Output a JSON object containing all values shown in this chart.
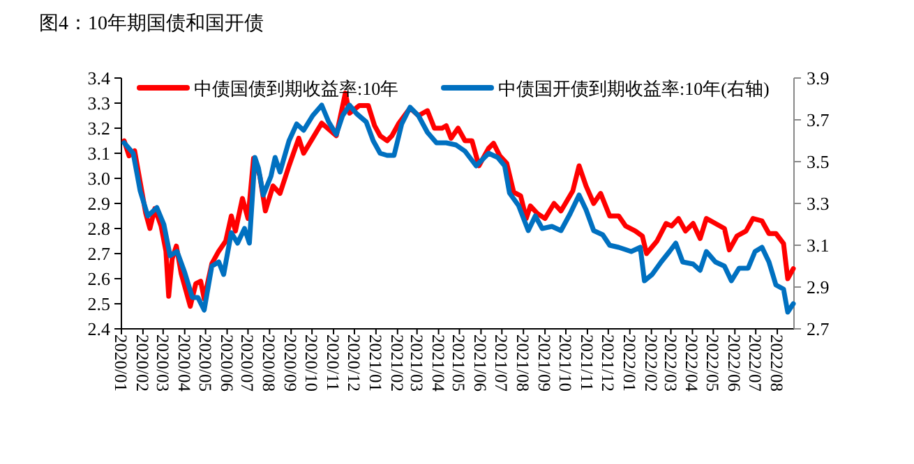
{
  "chart_data": {
    "type": "line",
    "title": "图4：10年期国债和国开债",
    "legend": "top",
    "xlim": [
      "2020-01-01",
      "2022-08-25"
    ],
    "xticks": [
      {
        "value": "2020-01",
        "label": "2020/01"
      },
      {
        "value": "2020-02",
        "label": "2020/02"
      },
      {
        "value": "2020-03",
        "label": "2020/03"
      },
      {
        "value": "2020-04",
        "label": "2020/04"
      },
      {
        "value": "2020-05",
        "label": "2020/05"
      },
      {
        "value": "2020-06",
        "label": "2020/06"
      },
      {
        "value": "2020-07",
        "label": "2020/07"
      },
      {
        "value": "2020-08",
        "label": "2020/08"
      },
      {
        "value": "2020-09",
        "label": "2020/09"
      },
      {
        "value": "2020-10",
        "label": "2020/10"
      },
      {
        "value": "2020-11",
        "label": "2020/11"
      },
      {
        "value": "2020-12",
        "label": "2020/12"
      },
      {
        "value": "2021-01",
        "label": "2021/01"
      },
      {
        "value": "2021-02",
        "label": "2021/02"
      },
      {
        "value": "2021-03",
        "label": "2021/03"
      },
      {
        "value": "2021-04",
        "label": "2021/04"
      },
      {
        "value": "2021-05",
        "label": "2021/05"
      },
      {
        "value": "2021-06",
        "label": "2021/06"
      },
      {
        "value": "2021-07",
        "label": "2021/07"
      },
      {
        "value": "2021-08",
        "label": "2021/08"
      },
      {
        "value": "2021-09",
        "label": "2021/09"
      },
      {
        "value": "2021-10",
        "label": "2021/10"
      },
      {
        "value": "2021-11",
        "label": "2021/11"
      },
      {
        "value": "2021-12",
        "label": "2021/12"
      },
      {
        "value": "2022-01",
        "label": "2022/01"
      },
      {
        "value": "2022-02",
        "label": "2022/02"
      },
      {
        "value": "2022-03",
        "label": "2022/03"
      },
      {
        "value": "2022-04",
        "label": "2022/04"
      },
      {
        "value": "2022-05",
        "label": "2022/05"
      },
      {
        "value": "2022-06",
        "label": "2022/06"
      },
      {
        "value": "2022-07",
        "label": "2022/07"
      },
      {
        "value": "2022-08",
        "label": "2022/08"
      }
    ],
    "ylim": [
      2.4,
      3.4
    ],
    "yticks": [
      2.4,
      2.5,
      2.6,
      2.7,
      2.8,
      2.9,
      {
        "value": 3,
        "label": "3.0"
      },
      3.1,
      3.2,
      3.3,
      3.4
    ],
    "y2lim": [
      2.7,
      3.9
    ],
    "y2ticks": [
      2.7,
      2.9,
      3.1,
      3.3,
      3.5,
      3.7,
      3.9
    ],
    "series": [
      {
        "name": "中债国债到期收益率:10年",
        "color": "#ff0000",
        "x": [
          "2020-01-05",
          "2020-01-12",
          "2020-01-20",
          "2020-02-05",
          "2020-02-11",
          "2020-02-18",
          "2020-02-27",
          "2020-03-05",
          "2020-03-09",
          "2020-03-14",
          "2020-03-20",
          "2020-03-27",
          "2020-04-09",
          "2020-04-17",
          "2020-04-24",
          "2020-04-29",
          "2020-05-10",
          "2020-05-20",
          "2020-05-30",
          "2020-06-07",
          "2020-06-13",
          "2020-06-23",
          "2020-07-01",
          "2020-07-09",
          "2020-07-18",
          "2020-07-26",
          "2020-08-06",
          "2020-08-16",
          "2020-08-29",
          "2020-09-12",
          "2020-09-19",
          "2020-10-02",
          "2020-10-15",
          "2020-11-05",
          "2020-11-18",
          "2020-11-24",
          "2020-12-08",
          "2020-12-21",
          "2020-12-30",
          "2021-01-07",
          "2021-01-17",
          "2021-01-24",
          "2021-02-03",
          "2021-02-19",
          "2021-03-03",
          "2021-03-16",
          "2021-03-26",
          "2021-04-06",
          "2021-04-12",
          "2021-04-19",
          "2021-04-29",
          "2021-05-09",
          "2021-05-19",
          "2021-05-29",
          "2021-06-12",
          "2021-06-19",
          "2021-06-28",
          "2021-07-08",
          "2021-07-18",
          "2021-07-28",
          "2021-08-05",
          "2021-08-11",
          "2021-08-21",
          "2021-09-01",
          "2021-09-14",
          "2021-09-24",
          "2021-10-11",
          "2021-10-20",
          "2021-10-30",
          "2021-11-10",
          "2021-11-20",
          "2021-12-03",
          "2021-12-16",
          "2021-12-26",
          "2022-01-09",
          "2022-01-19",
          "2022-01-25",
          "2022-02-09",
          "2022-02-22",
          "2022-03-02",
          "2022-03-12",
          "2022-03-22",
          "2022-04-02",
          "2022-04-12",
          "2022-04-21",
          "2022-05-04",
          "2022-05-17",
          "2022-05-24",
          "2022-06-04",
          "2022-06-17",
          "2022-06-27",
          "2022-07-10",
          "2022-07-20",
          "2022-07-30",
          "2022-08-10",
          "2022-08-16",
          "2022-08-24"
        ],
        "values": [
          3.15,
          3.09,
          3.11,
          2.86,
          2.8,
          2.88,
          2.81,
          2.71,
          2.53,
          2.68,
          2.73,
          2.62,
          2.49,
          2.58,
          2.59,
          2.52,
          2.66,
          2.71,
          2.75,
          2.85,
          2.79,
          2.92,
          2.84,
          3.08,
          3.01,
          2.87,
          2.97,
          2.94,
          3.05,
          3.16,
          3.1,
          3.16,
          3.22,
          3.17,
          3.34,
          3.26,
          3.29,
          3.29,
          3.21,
          3.17,
          3.15,
          3.17,
          3.22,
          3.28,
          3.25,
          3.27,
          3.2,
          3.2,
          3.21,
          3.16,
          3.2,
          3.15,
          3.15,
          3.05,
          3.12,
          3.14,
          3.09,
          3.06,
          2.945,
          2.93,
          2.84,
          2.89,
          2.86,
          2.84,
          2.9,
          2.87,
          2.95,
          3.05,
          2.97,
          2.9,
          2.94,
          2.85,
          2.85,
          2.81,
          2.79,
          2.77,
          2.7,
          2.75,
          2.82,
          2.81,
          2.84,
          2.79,
          2.82,
          2.76,
          2.84,
          2.82,
          2.8,
          2.715,
          2.77,
          2.79,
          2.84,
          2.83,
          2.78,
          2.78,
          2.74,
          2.6,
          2.64
        ]
      },
      {
        "name": "中债国开债到期收益率:10年(右轴)",
        "color": "#0070c0",
        "axis": "y2",
        "x": [
          "2020-01-05",
          "2020-01-18",
          "2020-01-28",
          "2020-02-08",
          "2020-02-21",
          "2020-03-02",
          "2020-03-11",
          "2020-03-21",
          "2020-04-01",
          "2020-04-12",
          "2020-04-20",
          "2020-04-29",
          "2020-05-10",
          "2020-05-20",
          "2020-05-27",
          "2020-06-07",
          "2020-06-16",
          "2020-06-26",
          "2020-07-03",
          "2020-07-11",
          "2020-07-16",
          "2020-07-23",
          "2020-08-03",
          "2020-08-09",
          "2020-08-16",
          "2020-08-29",
          "2020-09-09",
          "2020-09-19",
          "2020-10-02",
          "2020-10-15",
          "2020-10-25",
          "2020-11-05",
          "2020-11-14",
          "2020-11-24",
          "2020-12-04",
          "2020-12-18",
          "2020-12-28",
          "2021-01-07",
          "2021-01-17",
          "2021-01-27",
          "2021-02-07",
          "2021-02-19",
          "2021-03-03",
          "2021-03-16",
          "2021-03-29",
          "2021-04-12",
          "2021-04-26",
          "2021-05-09",
          "2021-05-25",
          "2021-06-12",
          "2021-06-25",
          "2021-07-05",
          "2021-07-12",
          "2021-07-25",
          "2021-08-08",
          "2021-08-18",
          "2021-08-28",
          "2021-09-11",
          "2021-09-24",
          "2021-10-07",
          "2021-10-20",
          "2021-10-30",
          "2021-11-10",
          "2021-11-23",
          "2021-12-03",
          "2021-12-16",
          "2022-01-03",
          "2022-01-16",
          "2022-01-22",
          "2022-02-02",
          "2022-02-15",
          "2022-02-27",
          "2022-03-08",
          "2022-03-18",
          "2022-04-02",
          "2022-04-12",
          "2022-04-21",
          "2022-05-04",
          "2022-05-17",
          "2022-05-27",
          "2022-06-07",
          "2022-06-20",
          "2022-06-30",
          "2022-07-10",
          "2022-07-20",
          "2022-07-30",
          "2022-08-10",
          "2022-08-16",
          "2022-08-24"
        ],
        "values": [
          3.59,
          3.54,
          3.36,
          3.24,
          3.28,
          3.2,
          3.05,
          3.07,
          2.97,
          2.85,
          2.85,
          2.79,
          3.0,
          3.02,
          2.96,
          3.16,
          3.11,
          3.18,
          3.11,
          3.52,
          3.47,
          3.34,
          3.43,
          3.52,
          3.45,
          3.6,
          3.68,
          3.65,
          3.72,
          3.77,
          3.69,
          3.63,
          3.72,
          3.77,
          3.73,
          3.69,
          3.6,
          3.54,
          3.53,
          3.53,
          3.68,
          3.76,
          3.72,
          3.64,
          3.59,
          3.59,
          3.58,
          3.55,
          3.48,
          3.54,
          3.52,
          3.48,
          3.35,
          3.29,
          3.17,
          3.24,
          3.18,
          3.19,
          3.17,
          3.25,
          3.34,
          3.27,
          3.17,
          3.15,
          3.1,
          3.09,
          3.07,
          3.09,
          2.93,
          2.96,
          3.02,
          3.07,
          3.11,
          3.02,
          3.01,
          2.98,
          3.07,
          3.02,
          3.0,
          2.93,
          2.99,
          2.99,
          3.07,
          3.09,
          3.02,
          2.91,
          2.89,
          2.78,
          2.82
        ]
      }
    ]
  }
}
